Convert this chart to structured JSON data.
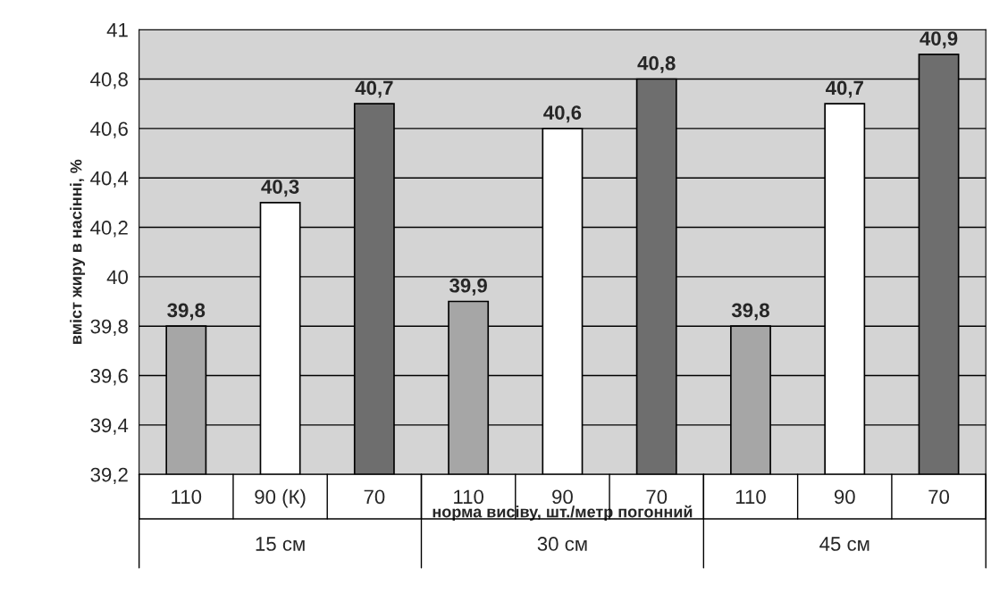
{
  "chart_data": {
    "type": "bar",
    "xlabel": "норма висіву, шт./метр погонний",
    "ylabel": "вміст жиру в насінні, %",
    "categories": [
      "110",
      "90 (К)",
      "70",
      "110",
      "90",
      "70",
      "110",
      "90",
      "70"
    ],
    "values": [
      39.8,
      40.3,
      40.7,
      39.9,
      40.6,
      40.8,
      39.8,
      40.7,
      40.9
    ],
    "value_labels": [
      "39,8",
      "40,3",
      "40,7",
      "39,9",
      "40,6",
      "40,8",
      "39,8",
      "40,7",
      "40,9"
    ],
    "colors": [
      "#a6a6a6",
      "#ffffff",
      "#6e6e6e",
      "#a6a6a6",
      "#ffffff",
      "#6e6e6e",
      "#a6a6a6",
      "#ffffff",
      "#6e6e6e"
    ],
    "ylim": [
      39.2,
      41
    ],
    "yticks": [
      {
        "value": 39.2,
        "label": "39,2"
      },
      {
        "value": 39.4,
        "label": "39,4"
      },
      {
        "value": 39.6,
        "label": "39,6"
      },
      {
        "value": 39.8,
        "label": "39,8"
      },
      {
        "value": 40,
        "label": "40"
      },
      {
        "value": 40.2,
        "label": "40,2"
      },
      {
        "value": 40.4,
        "label": "40,4"
      },
      {
        "value": 40.6,
        "label": "40,6"
      },
      {
        "value": 40.8,
        "label": "40,8"
      },
      {
        "value": 41,
        "label": "41"
      }
    ],
    "annotations": [
      "15 см",
      "30 см",
      "45 см"
    ],
    "grid": "y"
  }
}
